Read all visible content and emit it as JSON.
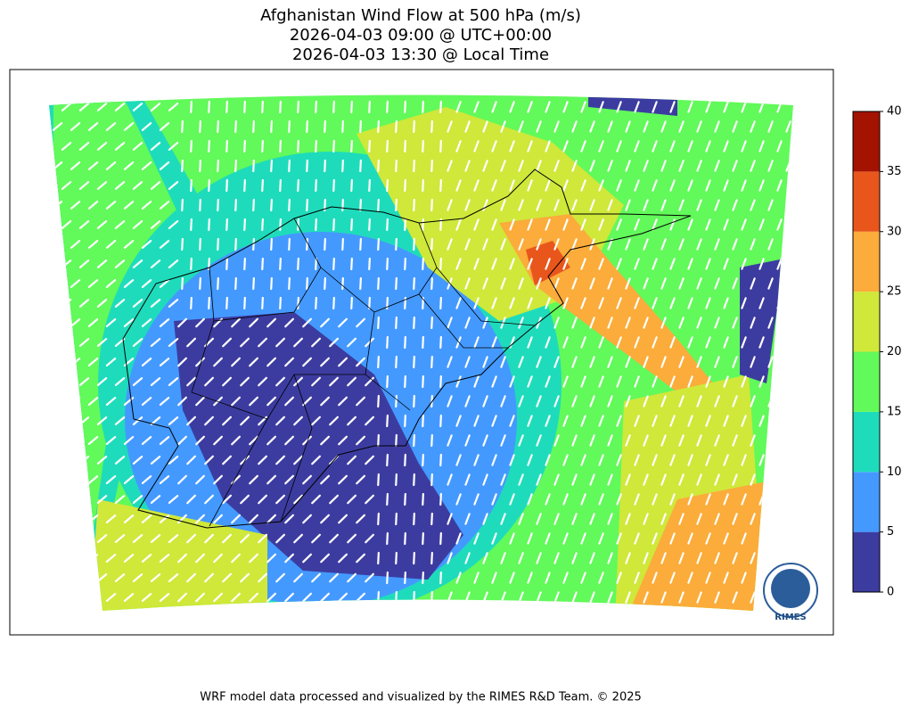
{
  "header": {
    "title_lines": [
      "Afghanistan Wind Flow at 500 hPa (m/s)",
      "2026-04-03 09:00 @ UTC+00:00",
      "2026-04-03 13:30 @ Local Time"
    ]
  },
  "colorbar": {
    "lim": [
      0,
      40
    ],
    "ticks": [
      0,
      5,
      10,
      15,
      20,
      25,
      30,
      35,
      40
    ],
    "colors": [
      "#3c3ca0",
      "#4499ff",
      "#1edcbb",
      "#62f95a",
      "#cfe83a",
      "#fbac3a",
      "#e8561c",
      "#a31300"
    ]
  },
  "logo": {
    "text": "RIMES"
  },
  "footer": {
    "text": "WRF model data processed and visualized by the RIMES R&D Team. © 2025"
  }
}
